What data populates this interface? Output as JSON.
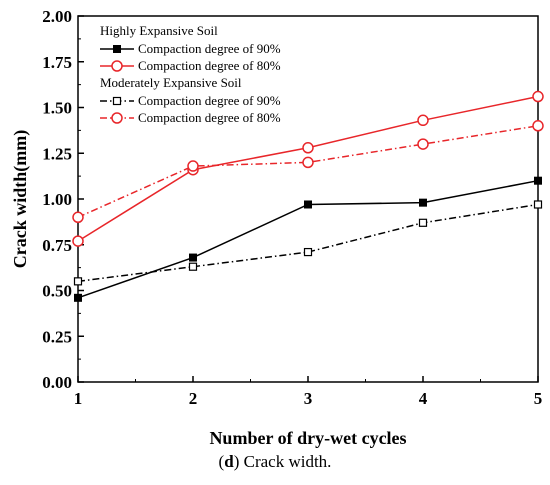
{
  "chart_data": {
    "type": "line",
    "xlabel": "Number of dry-wet cycles",
    "ylabel": "Crack width(mm)",
    "xlim": [
      1,
      5
    ],
    "ylim": [
      0,
      2
    ],
    "x_ticks": [
      "1",
      "2",
      "3",
      "4",
      "5"
    ],
    "y_ticks": [
      "0.00",
      "0.25",
      "0.50",
      "0.75",
      "1.00",
      "1.25",
      "1.50",
      "1.75",
      "2.00"
    ],
    "grid": false,
    "legend_position": "top-left",
    "legend_groups": [
      {
        "title": "Highly Expansive Soil",
        "series_indices": [
          0,
          1
        ]
      },
      {
        "title": "Moderately Expansive Soil",
        "series_indices": [
          2,
          3
        ]
      }
    ],
    "x": [
      1,
      2,
      3,
      4,
      5
    ],
    "series": [
      {
        "name": "Compaction degree of 90%",
        "values": [
          0.46,
          0.68,
          0.97,
          0.98,
          1.1
        ],
        "color": "#000000",
        "line": "solid",
        "marker": "square-filled"
      },
      {
        "name": "Compaction degree of 80%",
        "values": [
          0.77,
          1.16,
          1.28,
          1.43,
          1.56
        ],
        "color": "#e8262a",
        "line": "solid",
        "marker": "circle-open"
      },
      {
        "name": "Compaction degree of 90%",
        "values": [
          0.55,
          0.63,
          0.71,
          0.87,
          0.97
        ],
        "color": "#000000",
        "line": "dash-dot",
        "marker": "square-open"
      },
      {
        "name": "Compaction degree of 80%",
        "values": [
          0.9,
          1.18,
          1.2,
          1.3,
          1.4
        ],
        "color": "#e8262a",
        "line": "dash-dot",
        "marker": "circle-open"
      }
    ]
  },
  "caption": {
    "label": "(d)",
    "text": "Crack width."
  }
}
